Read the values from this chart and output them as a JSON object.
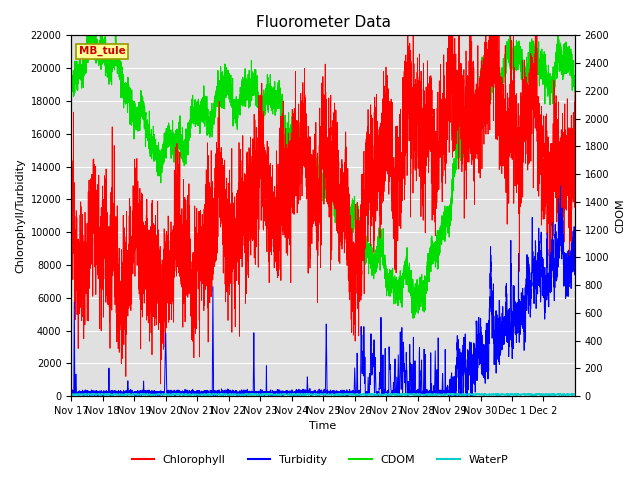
{
  "title": "Fluorometer Data",
  "xlabel": "Time",
  "ylabel_left": "Chlorophyll/Turbidity",
  "ylabel_right": "CDOM",
  "station_label": "MB_tule",
  "ylim_left": [
    0,
    22000
  ],
  "ylim_right": [
    0,
    2600
  ],
  "x_tick_labels": [
    "Nov 17",
    "Nov 18",
    "Nov 19",
    "Nov 20",
    "Nov 21",
    "Nov 22",
    "Nov 23",
    "Nov 24",
    "Nov 25",
    "Nov 26",
    "Nov 27",
    "Nov 28",
    "Nov 29",
    "Nov 30",
    "Dec 1",
    "Dec 2"
  ],
  "legend_entries": [
    "Chlorophyll",
    "Turbidity",
    "CDOM",
    "WaterP"
  ],
  "line_colors": [
    "#ff0000",
    "#0000ff",
    "#00dd00",
    "#00cccc"
  ],
  "background_color": "#ffffff",
  "plot_bg_color": "#e0e0e0",
  "grid_color": "#ffffff",
  "title_fontsize": 11,
  "axis_fontsize": 8,
  "tick_fontsize": 7,
  "chl_base": [
    10200,
    8500,
    8000,
    7500,
    9000,
    10500,
    12000,
    13500,
    14500,
    9000,
    15000,
    16000,
    17000,
    18500,
    17000,
    15000,
    13000
  ],
  "cdom_base": [
    2300,
    2450,
    2550,
    2300,
    2100,
    1850,
    1750,
    1850,
    2000,
    2100,
    2200,
    2150,
    2200,
    2100,
    1950,
    1700,
    1550,
    1400,
    1200,
    1050,
    900,
    800,
    750,
    950,
    1400,
    1900,
    2200,
    2350,
    2400,
    2450,
    2300,
    2380,
    2350
  ],
  "turb_spikes_day": [
    0.1,
    0.15,
    1.2,
    1.8,
    2.3,
    3.0,
    4.5,
    5.8,
    6.2,
    7.5,
    8.1,
    9.3,
    9.8,
    10.5
  ],
  "turb_spike_heights": [
    5500,
    1200,
    1500,
    800,
    700,
    3700,
    6500,
    3600,
    1600,
    1000,
    4300,
    1400,
    1200,
    1200
  ]
}
